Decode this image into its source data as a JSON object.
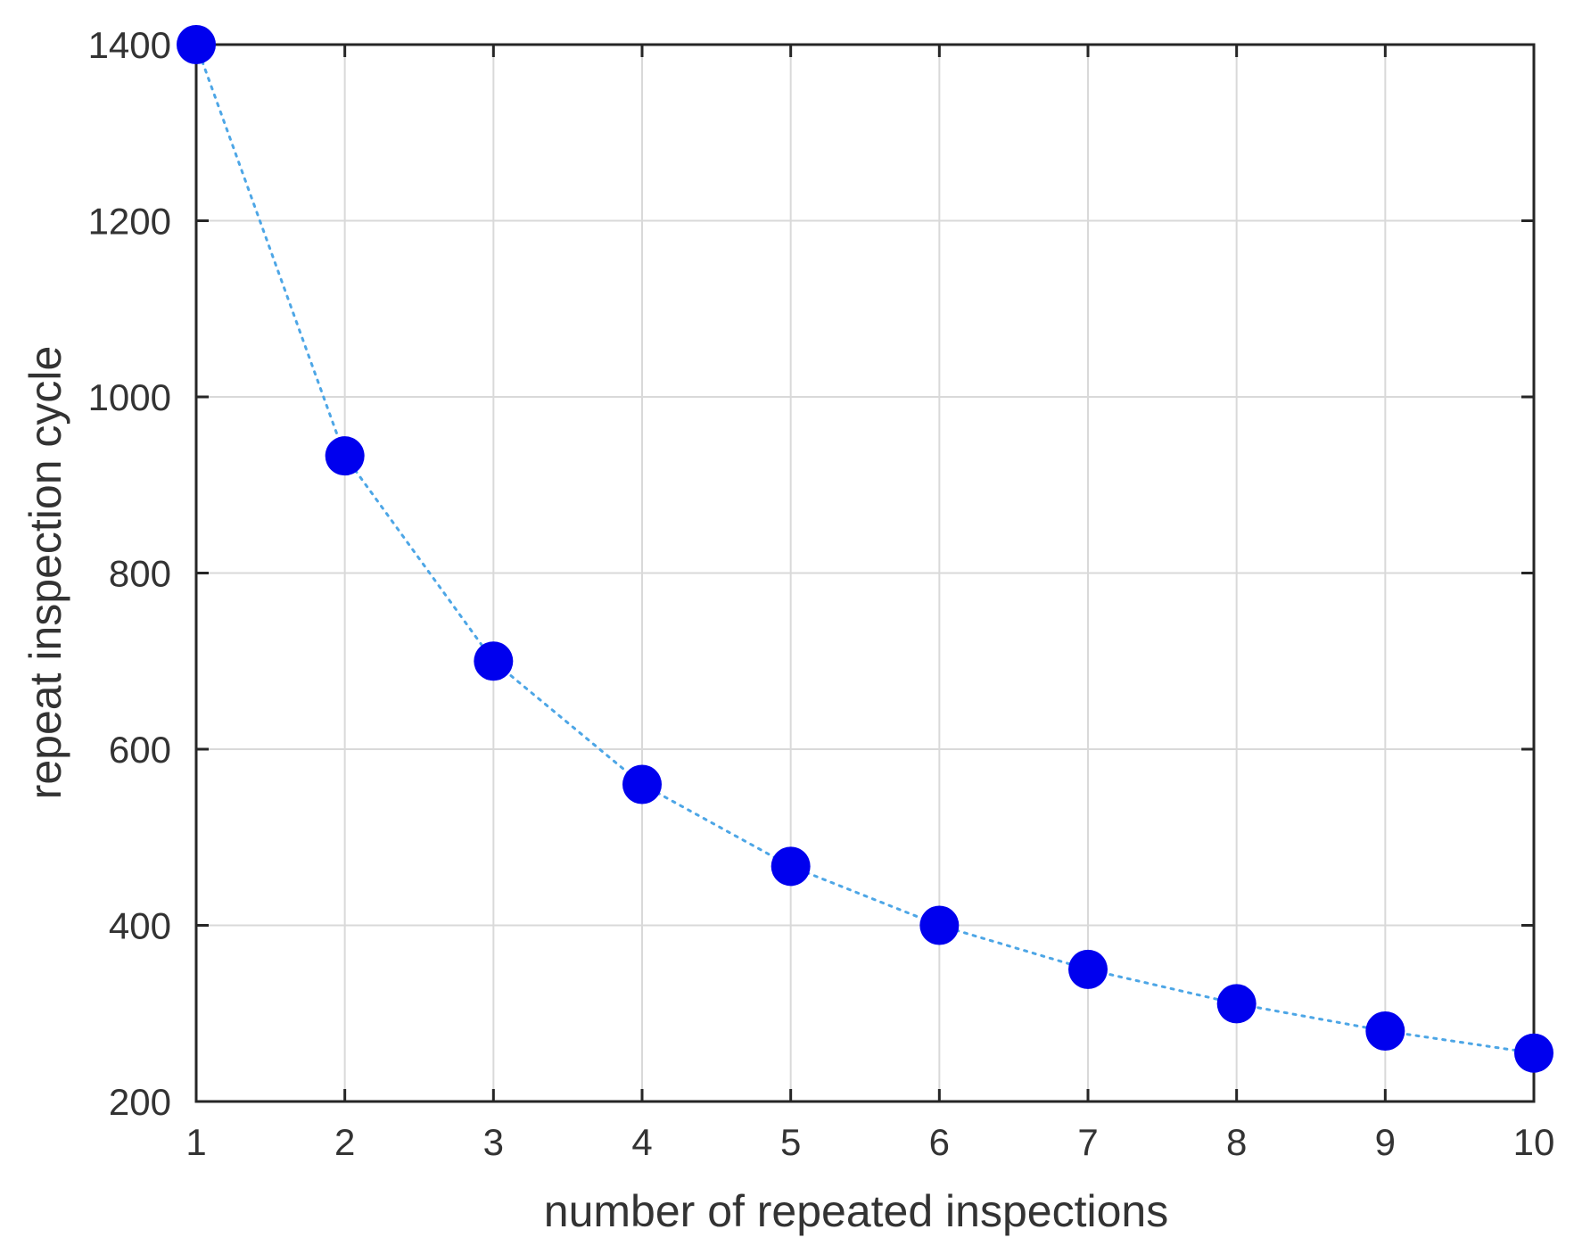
{
  "chart_data": {
    "type": "line",
    "title": "",
    "xlabel": "number of repeated inspections",
    "ylabel": "repeat inspection cycle",
    "xlim": [
      1,
      10
    ],
    "ylim": [
      200,
      1400
    ],
    "xticks": [
      1,
      2,
      3,
      4,
      5,
      6,
      7,
      8,
      9,
      10
    ],
    "yticks": [
      200,
      400,
      600,
      800,
      1000,
      1200,
      1400
    ],
    "grid": true,
    "series": [
      {
        "x": [
          1,
          2,
          3,
          4,
          5,
          6,
          7,
          8,
          9,
          10
        ],
        "values": [
          1400,
          933,
          700,
          560,
          467,
          400,
          350,
          311,
          280,
          255
        ],
        "color": "#0000ee",
        "line_color": "#4da6e6",
        "line_style": "dotted",
        "marker": "circle"
      }
    ]
  }
}
